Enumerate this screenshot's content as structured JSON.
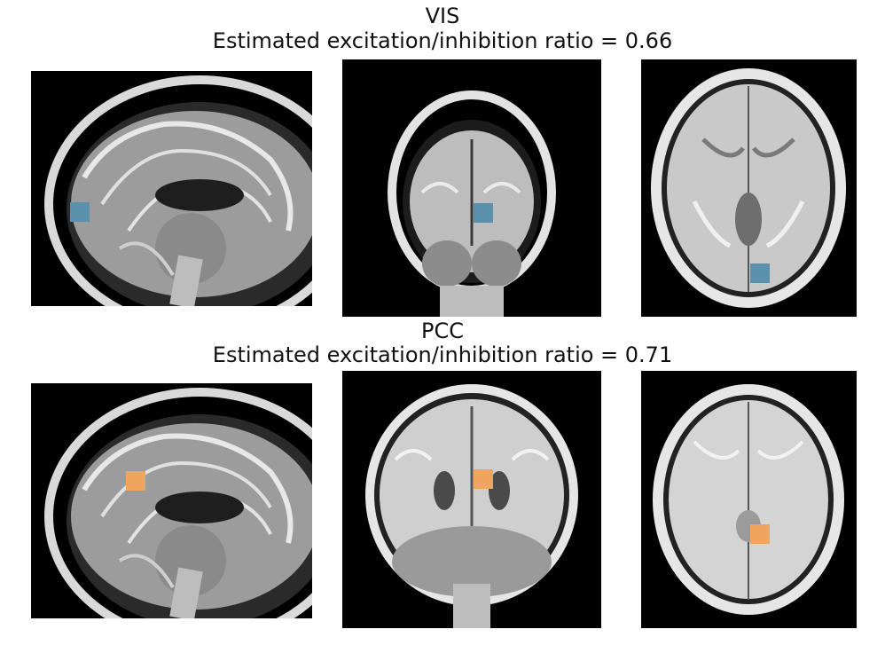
{
  "figure": {
    "rows": [
      {
        "region": "VIS",
        "ratio_text": "Estimated excitation/inhibition ratio = 0.66",
        "marker_color": "#5b90ad",
        "views": [
          "sagittal",
          "coronal",
          "axial"
        ]
      },
      {
        "region": "PCC",
        "ratio_text": "Estimated excitation/inhibition ratio = 0.71",
        "marker_color": "#f0a55e",
        "views": [
          "sagittal",
          "coronal",
          "axial"
        ]
      }
    ]
  }
}
